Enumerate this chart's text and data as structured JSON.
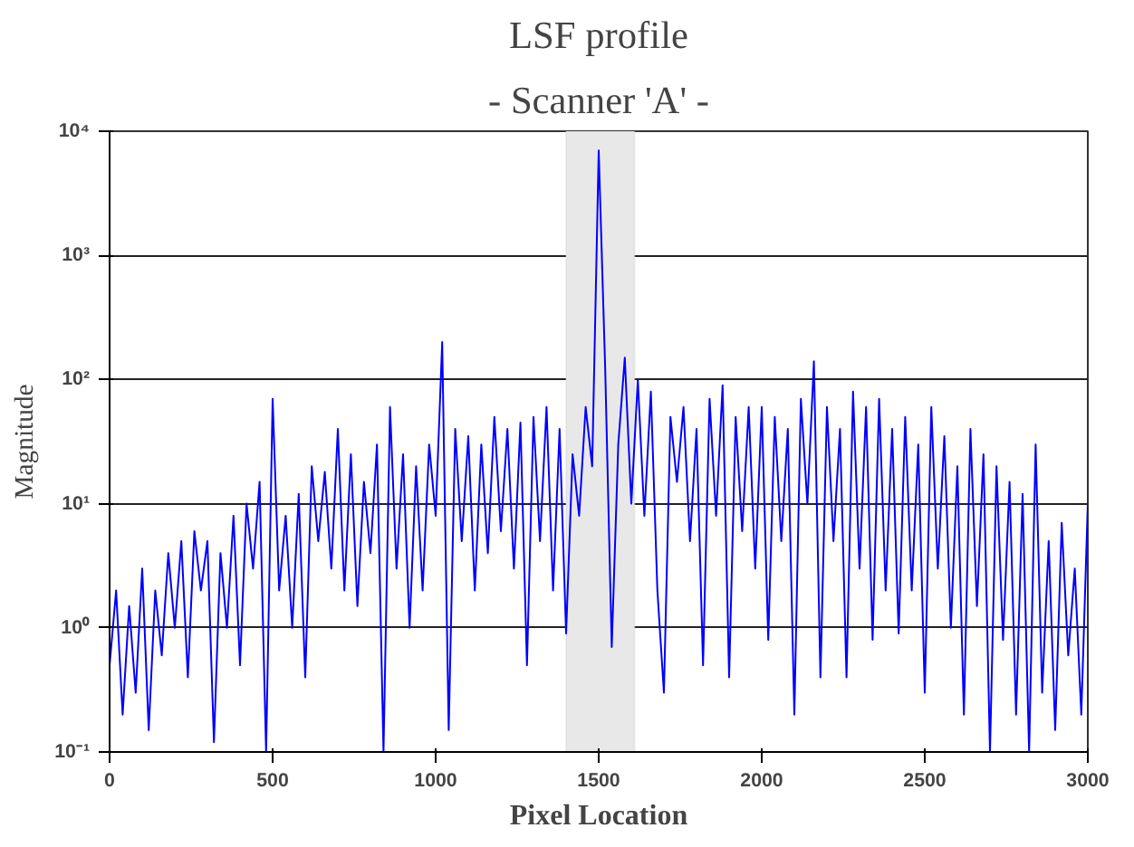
{
  "chart_data": {
    "type": "line",
    "title": "LSF profile",
    "subtitle": "- Scanner 'A' -",
    "xlabel": "Pixel Location",
    "ylabel": "Magnitude",
    "x": [
      0,
      20,
      40,
      60,
      80,
      100,
      120,
      140,
      160,
      180,
      200,
      220,
      240,
      260,
      280,
      300,
      320,
      340,
      360,
      380,
      400,
      420,
      440,
      460,
      480,
      500,
      520,
      540,
      560,
      580,
      600,
      620,
      640,
      660,
      680,
      700,
      720,
      740,
      760,
      780,
      800,
      820,
      840,
      860,
      880,
      900,
      920,
      940,
      960,
      980,
      1000,
      1020,
      1040,
      1060,
      1080,
      1100,
      1120,
      1140,
      1160,
      1180,
      1200,
      1220,
      1240,
      1260,
      1280,
      1300,
      1320,
      1340,
      1360,
      1380,
      1400,
      1420,
      1440,
      1460,
      1480,
      1500,
      1520,
      1540,
      1560,
      1580,
      1600,
      1620,
      1640,
      1660,
      1680,
      1700,
      1720,
      1740,
      1760,
      1780,
      1800,
      1820,
      1840,
      1860,
      1880,
      1900,
      1920,
      1940,
      1960,
      1980,
      2000,
      2020,
      2040,
      2060,
      2080,
      2100,
      2120,
      2140,
      2160,
      2180,
      2200,
      2220,
      2240,
      2260,
      2280,
      2300,
      2320,
      2340,
      2360,
      2380,
      2400,
      2420,
      2440,
      2460,
      2480,
      2500,
      2520,
      2540,
      2560,
      2580,
      2600,
      2620,
      2640,
      2660,
      2680,
      2700,
      2720,
      2740,
      2760,
      2780,
      2800,
      2820,
      2840,
      2860,
      2880,
      2900,
      2920,
      2940,
      2960,
      2980,
      3000
    ],
    "series": [
      {
        "color": "#0000ff",
        "values": [
          0.5,
          2,
          0.2,
          1.5,
          0.3,
          3,
          0.15,
          2,
          0.6,
          4,
          1,
          5,
          0.4,
          6,
          2,
          5,
          0.12,
          4,
          1,
          8,
          0.5,
          10,
          3,
          15,
          0.1,
          70,
          2,
          8,
          1,
          12,
          0.4,
          20,
          5,
          18,
          3,
          40,
          2,
          25,
          1.5,
          15,
          4,
          30,
          0.1,
          60,
          3,
          25,
          1,
          20,
          2,
          30,
          8,
          200,
          0.15,
          40,
          5,
          35,
          2,
          30,
          4,
          50,
          6,
          40,
          3,
          45,
          0.5,
          50,
          5,
          60,
          2,
          40,
          0.9,
          25,
          8,
          60,
          20,
          7000,
          120,
          0.7,
          30,
          150,
          10,
          100,
          8,
          80,
          2,
          0.3,
          50,
          15,
          60,
          5,
          40,
          0.5,
          70,
          8,
          90,
          0.4,
          50,
          6,
          60,
          3,
          60,
          0.8,
          50,
          5,
          40,
          0.2,
          70,
          10,
          140,
          0.4,
          60,
          5,
          40,
          0.4,
          80,
          3,
          60,
          0.8,
          70,
          2,
          40,
          0.9,
          50,
          2,
          30,
          0.3,
          60,
          3,
          35,
          1,
          20,
          0.2,
          40,
          1.5,
          25,
          0.1,
          20,
          0.8,
          15,
          0.2,
          12,
          0.1,
          30,
          0.3,
          5,
          0.15,
          7,
          0.6,
          3,
          0.2,
          10
        ]
      }
    ],
    "xlim": [
      0,
      3000
    ],
    "xticks": [
      0,
      500,
      1000,
      1500,
      2000,
      2500,
      3000
    ],
    "ylim": [
      0.1,
      10000
    ],
    "yticks": [
      {
        "value": 0.1,
        "label": "10⁻¹"
      },
      {
        "value": 1,
        "label": "10⁰"
      },
      {
        "value": 10,
        "label": "10¹"
      },
      {
        "value": 100,
        "label": "10²"
      },
      {
        "value": 1000,
        "label": "10³"
      },
      {
        "value": 10000,
        "label": "10⁴"
      }
    ],
    "log": "y",
    "grid": "y",
    "bands": [
      {
        "axis": "x",
        "from": 1400,
        "to": 1610,
        "color": "#e8e8e8"
      }
    ]
  }
}
